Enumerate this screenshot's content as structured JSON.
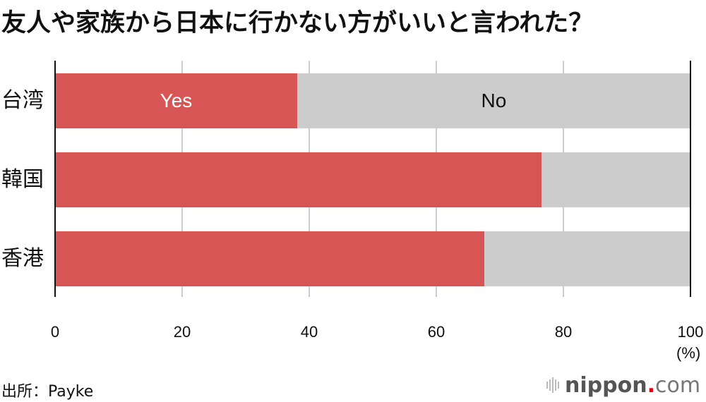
{
  "title": "友人や家族から日本に行かない方がいいと言われた？",
  "chart_data": {
    "type": "bar",
    "orientation": "horizontal",
    "stacked": true,
    "title": "友人や家族から日本に行かない方がいいと言われた？",
    "categories": [
      "台湾",
      "韓国",
      "香港"
    ],
    "series": [
      {
        "name": "Yes",
        "color": "#d85555",
        "values": [
          38.1,
          76.6,
          67.6
        ]
      },
      {
        "name": "No",
        "color": "#cccccc",
        "values": [
          61.9,
          23.4,
          32.4
        ]
      }
    ],
    "xlabel": "(%)",
    "ylabel": "",
    "xlim": [
      0,
      100
    ],
    "xticks": [
      "0",
      "20",
      "40",
      "60",
      "80",
      "100"
    ],
    "grid": true,
    "in_bar_labels": {
      "yes": "Yes",
      "no": "No"
    }
  },
  "axis": {
    "ticks": [
      "0",
      "20",
      "40",
      "60",
      "80",
      "100"
    ],
    "unit": "(%)"
  },
  "categories": [
    "台湾",
    "韓国",
    "香港"
  ],
  "labels": {
    "yes": "Yes",
    "no": "No"
  },
  "source": "出所：Payke",
  "logo": {
    "name": "nippon",
    "dot": ".",
    "suffix": "com"
  }
}
